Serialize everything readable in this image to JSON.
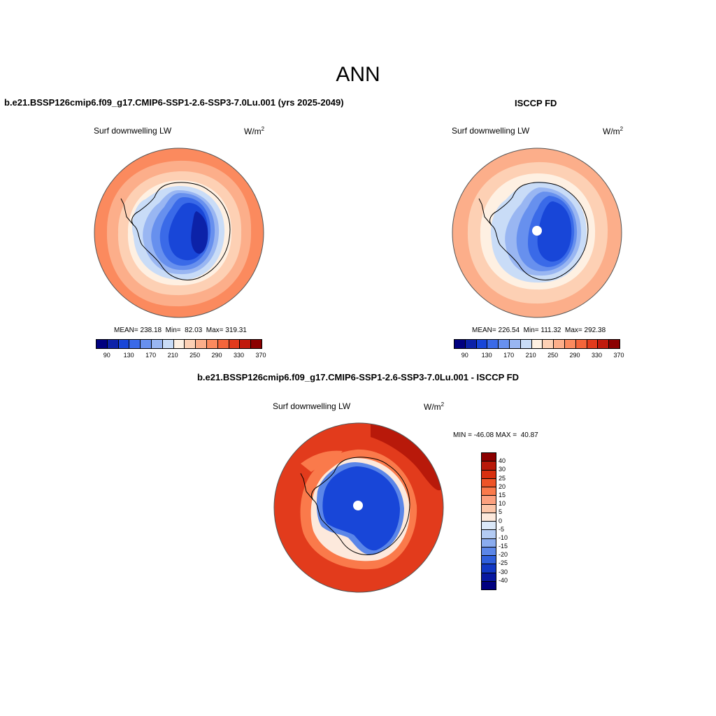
{
  "figure": {
    "title": "ANN",
    "panel_left_title": "b.e21.BSSP126cmip6.f09_g17.CMIP6-SSP1-2.6-SSP3-7.0Lu.001 (yrs 2025-2049)",
    "panel_right_title": "ISCCP FD",
    "panel_diff_title": "b.e21.BSSP126cmip6.f09_g17.CMIP6-SSP1-2.6-SSP3-7.0Lu.001 - ISCCP FD"
  },
  "panels": {
    "left": {
      "variable": "Surf downwelling LW",
      "units_base": "W/m",
      "units_exp": "2",
      "stats": "MEAN= 238.18  Min=  82.03  Max= 319.31"
    },
    "right": {
      "variable": "Surf downwelling LW",
      "units_base": "W/m",
      "units_exp": "2",
      "stats": "MEAN= 226.54  Min= 111.32  Max= 292.38"
    },
    "diff": {
      "variable": "Surf downwelling LW",
      "units_base": "W/m",
      "units_exp": "2",
      "minmax": "MIN = -46.08 MAX =  40.87"
    }
  },
  "colorbars": {
    "abs_colors": [
      "#00007f",
      "#0c22a8",
      "#1846d8",
      "#3a6ae8",
      "#6790ee",
      "#99b6f2",
      "#c9dcf7",
      "#fef0e2",
      "#fdd0b4",
      "#fcae8a",
      "#fb8a5e",
      "#f4653a",
      "#e23b1c",
      "#c01a0c",
      "#8c0000"
    ],
    "abs_labels": [
      "90",
      "130",
      "170",
      "210",
      "250",
      "290",
      "330",
      "370"
    ],
    "diff_colors": [
      "#8c0000",
      "#b8190a",
      "#d8300f",
      "#ee5427",
      "#fa7a4b",
      "#fca07e",
      "#fcc5a8",
      "#fde9dc",
      "#dbe8f8",
      "#b3cbf3",
      "#8aacef",
      "#5b86e8",
      "#2f5fdc",
      "#1238c4",
      "#0818a0",
      "#00007f"
    ],
    "diff_labels": [
      "40",
      "30",
      "25",
      "20",
      "15",
      "10",
      "5",
      "0",
      "-5",
      "-10",
      "-15",
      "-20",
      "-25",
      "-30",
      "-40"
    ]
  },
  "map_colors": {
    "abs_ring_outer": "#fb8a5e",
    "abs_ring_mid": "#fcae8a",
    "abs_ring_inner": "#fdd0b4",
    "abs_ring_pale": "#fef0e2",
    "abs_ice_edge": "#c9dcf7",
    "abs_ice_1": "#99b6f2",
    "abs_ice_2": "#6790ee",
    "abs_ice_3": "#3a6ae8",
    "abs_ice_4": "#1846d8",
    "abs_ice_5": "#0c22a8",
    "diff_outer": "#e23b1c",
    "diff_deep": "#b8190a",
    "diff_mid": "#fa7a4b",
    "diff_pale": "#fde9dc",
    "diff_ice": "#1846d8",
    "diff_ice_light": "#5b86e8"
  }
}
